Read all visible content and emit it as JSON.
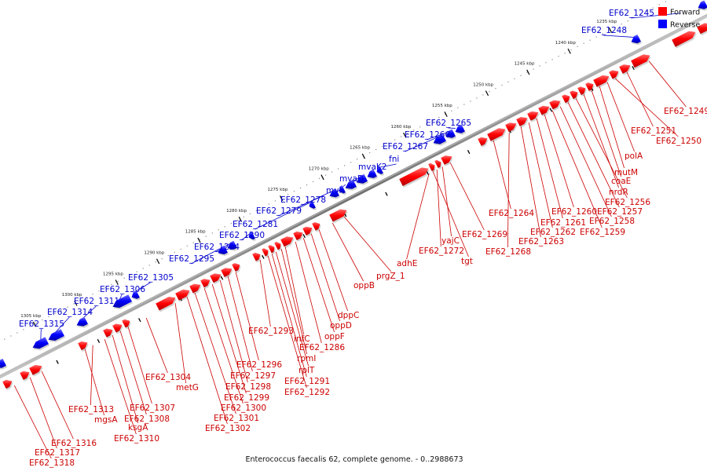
{
  "caption": "Enterococcus faecalis 62, complete genome. - 0..2988673",
  "legend": [
    {
      "label": "Forward",
      "color": "#ff0000"
    },
    {
      "label": "Reverse",
      "color": "#0000ff"
    }
  ],
  "colors": {
    "forward": "#ff0000",
    "reverse": "#0000ff",
    "backbone": "#808080",
    "forward_label": "#cc0000",
    "reverse_label": "#0000cc"
  },
  "scale_ticks": [
    {
      "label": "1235 kbp",
      "pos": 1235
    },
    {
      "label": "1240 kbp",
      "pos": 1240
    },
    {
      "label": "1245 kbp",
      "pos": 1245
    },
    {
      "label": "1250 kbp",
      "pos": 1250
    },
    {
      "label": "1255 kbp",
      "pos": 1255
    },
    {
      "label": "1260 kbp",
      "pos": 1260
    },
    {
      "label": "1265 kbp",
      "pos": 1265
    },
    {
      "label": "1270 kbp",
      "pos": 1270
    },
    {
      "label": "1275 kbp",
      "pos": 1275
    },
    {
      "label": "1280 kbp",
      "pos": 1280
    },
    {
      "label": "1285 kbp",
      "pos": 1285
    },
    {
      "label": "1290 kbp",
      "pos": 1290
    },
    {
      "label": "1295 kbp",
      "pos": 1295
    },
    {
      "label": "1300 kbp",
      "pos": 1300
    },
    {
      "label": "1305 kbp",
      "pos": 1305
    }
  ],
  "reverse_labels": [
    "EF62_1245",
    "EF62_1248",
    "EF62_1265",
    "EF62_1266",
    "EF62_1267",
    "fni",
    "mvaK2",
    "mvaD",
    "mvk",
    "EF62_1278",
    "EF62_1279",
    "EF62_1281",
    "EF62_1290",
    "EF62_1294",
    "EF62_1295",
    "EF62_1305",
    "EF62_1306",
    "EF62_1311",
    "EF62_1314",
    "EF62_1315"
  ],
  "forward_labels": [
    "EF62_1249",
    "EF62_1251",
    "EF62_1250",
    "polA",
    "mutM",
    "coaE",
    "nrdR",
    "EF62_1256",
    "EF62_1257",
    "EF62_1258",
    "EF62_1259",
    "EF62_1260",
    "EF62_1261",
    "EF62_1262",
    "EF62_1263",
    "EF62_1264",
    "EF62_1268",
    "EF62_1269",
    "yajC",
    "EF62_1272",
    "tgt",
    "adhE",
    "prgZ_1",
    "oppB",
    "dppC",
    "oppD",
    "oppF",
    "EF62_1286",
    "infC",
    "rpmI",
    "rplT",
    "EF62_1291",
    "EF62_1292",
    "EF62_1293",
    "EF62_1296",
    "EF62_1297",
    "EF62_1298",
    "EF62_1299",
    "EF62_1300",
    "EF62_1301",
    "EF62_1302",
    "metG",
    "EF62_1304",
    "EF62_1307",
    "EF62_1308",
    "ksgA",
    "EF62_1310",
    "mgsA",
    "EF62_1313",
    "EF62_1316",
    "EF62_1317",
    "EF62_1318"
  ]
}
